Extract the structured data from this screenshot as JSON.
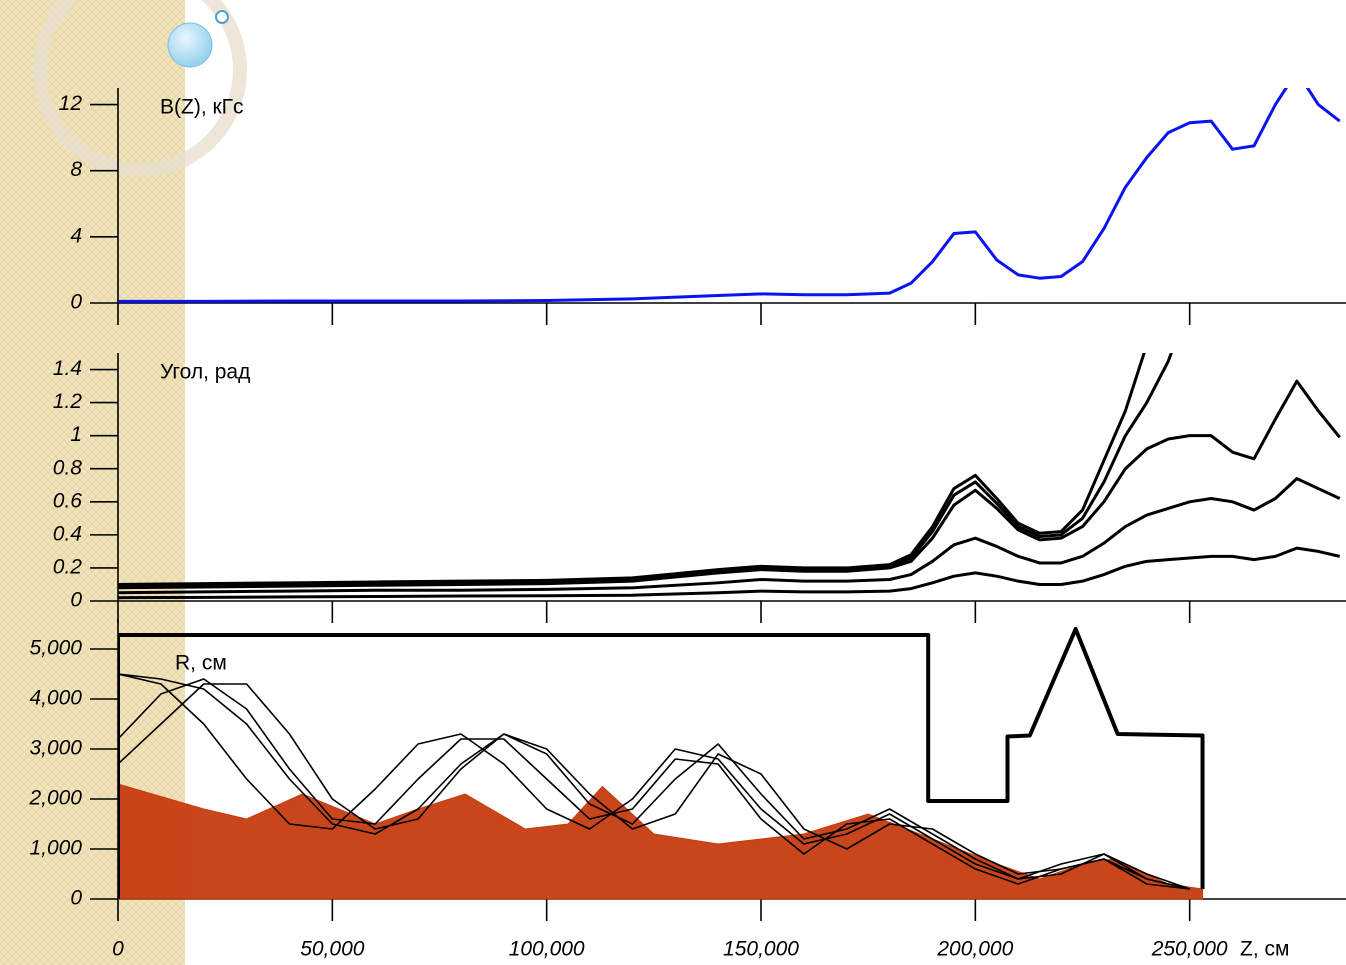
{
  "chart_data": [
    {
      "type": "line",
      "ylabel": "B(Z), кГс",
      "x": [
        0,
        20000,
        40000,
        60000,
        80000,
        100000,
        120000,
        140000,
        150000,
        160000,
        170000,
        180000,
        185000,
        190000,
        195000,
        200000,
        205000,
        210000,
        215000,
        220000,
        225000,
        230000,
        235000,
        240000,
        245000,
        250000,
        255000,
        260000,
        265000,
        270000,
        275000,
        280000,
        285000
      ],
      "xlim": [
        0,
        286000
      ],
      "ylim": [
        0,
        13
      ],
      "yticks": [
        0,
        4,
        8,
        12
      ],
      "series": [
        {
          "color": "#0a14f0",
          "values": [
            0.1,
            0.1,
            0.12,
            0.12,
            0.12,
            0.15,
            0.25,
            0.45,
            0.55,
            0.5,
            0.5,
            0.6,
            1.2,
            2.5,
            4.2,
            4.3,
            2.6,
            1.7,
            1.5,
            1.6,
            2.5,
            4.5,
            7.0,
            8.8,
            10.3,
            10.9,
            11.0,
            9.3,
            9.5,
            12.0,
            14.0,
            12.0,
            11.0
          ]
        }
      ]
    },
    {
      "type": "line",
      "ylabel": "Угол, рад",
      "x": [
        0,
        20000,
        40000,
        60000,
        80000,
        100000,
        120000,
        140000,
        150000,
        160000,
        170000,
        180000,
        185000,
        190000,
        195000,
        200000,
        205000,
        210000,
        215000,
        220000,
        225000,
        230000,
        235000,
        240000,
        245000,
        250000,
        255000,
        260000,
        265000,
        270000,
        275000,
        280000,
        285000
      ],
      "xlim": [
        0,
        286000
      ],
      "ylim": [
        0,
        1.5
      ],
      "yticks": [
        0,
        0.2,
        0.4,
        0.6,
        0.8,
        1,
        1.2,
        1.4
      ],
      "series": [
        {
          "color": "#000000",
          "values": [
            0.1,
            0.105,
            0.11,
            0.115,
            0.12,
            0.125,
            0.14,
            0.19,
            0.21,
            0.2,
            0.2,
            0.22,
            0.28,
            0.45,
            0.68,
            0.76,
            0.62,
            0.47,
            0.41,
            0.42,
            0.55,
            0.85,
            1.15,
            1.55,
            null,
            null,
            null,
            null,
            null,
            null,
            null,
            null,
            null
          ]
        },
        {
          "color": "#000000",
          "values": [
            0.09,
            0.095,
            0.1,
            0.105,
            0.11,
            0.115,
            0.13,
            0.18,
            0.2,
            0.19,
            0.19,
            0.21,
            0.26,
            0.42,
            0.64,
            0.72,
            0.59,
            0.45,
            0.39,
            0.4,
            0.5,
            0.72,
            1.0,
            1.2,
            1.45,
            1.8,
            null,
            null,
            null,
            null,
            null,
            null,
            null
          ]
        },
        {
          "color": "#000000",
          "values": [
            0.08,
            0.085,
            0.09,
            0.095,
            0.1,
            0.105,
            0.12,
            0.17,
            0.19,
            0.18,
            0.18,
            0.2,
            0.24,
            0.38,
            0.58,
            0.67,
            0.56,
            0.43,
            0.37,
            0.38,
            0.45,
            0.6,
            0.8,
            0.92,
            0.98,
            1.0,
            1.0,
            0.9,
            0.86,
            1.1,
            1.33,
            1.15,
            0.99
          ]
        },
        {
          "color": "#000000",
          "values": [
            0.05,
            0.055,
            0.06,
            0.065,
            0.065,
            0.07,
            0.08,
            0.11,
            0.13,
            0.12,
            0.12,
            0.13,
            0.16,
            0.24,
            0.34,
            0.38,
            0.33,
            0.27,
            0.23,
            0.23,
            0.27,
            0.35,
            0.45,
            0.52,
            0.56,
            0.6,
            0.62,
            0.6,
            0.55,
            0.62,
            0.74,
            0.68,
            0.62
          ]
        },
        {
          "color": "#000000",
          "values": [
            0.02,
            0.022,
            0.025,
            0.027,
            0.03,
            0.032,
            0.035,
            0.05,
            0.06,
            0.055,
            0.055,
            0.06,
            0.075,
            0.11,
            0.15,
            0.17,
            0.15,
            0.12,
            0.1,
            0.1,
            0.12,
            0.16,
            0.21,
            0.24,
            0.25,
            0.26,
            0.27,
            0.27,
            0.25,
            0.27,
            0.32,
            0.3,
            0.27
          ]
        }
      ]
    },
    {
      "type": "line",
      "ylabel": "R, см",
      "xlabel": "Z, см",
      "xlim": [
        0,
        286000
      ],
      "ylim": [
        0,
        5600
      ],
      "xticks": [
        0,
        {
          "value": 50000,
          "label": "50,000"
        },
        {
          "value": 100000,
          "label": "100,000"
        },
        {
          "value": 150000,
          "label": "150,000"
        },
        {
          "value": 200000,
          "label": "200,000"
        },
        {
          "value": 250000,
          "label": "250,000"
        }
      ],
      "yticks": [
        0,
        {
          "value": 1000,
          "label": "1,000"
        },
        {
          "value": 2000,
          "label": "2,000"
        },
        {
          "value": 3000,
          "label": "3,000"
        },
        {
          "value": 4000,
          "label": "4,000"
        },
        {
          "value": 5000,
          "label": "5,000"
        }
      ],
      "series": [
        {
          "color": "#c63c10",
          "fill": true,
          "x": [
            0,
            20000,
            30000,
            43000,
            60000,
            70000,
            81000,
            95000,
            105000,
            113000,
            125000,
            140000,
            160000,
            175000,
            190000,
            205000,
            215000,
            225000,
            232000,
            245000,
            253000
          ],
          "values": [
            2300,
            1800,
            1600,
            2100,
            1500,
            1800,
            2100,
            1400,
            1500,
            2250,
            1300,
            1100,
            1300,
            1700,
            1200,
            700,
            400,
            700,
            800,
            300,
            200
          ]
        },
        {
          "color": "#000000",
          "x": [
            0,
            10000,
            20000,
            30000,
            40000,
            50000,
            60000,
            70000,
            80000,
            90000,
            100000,
            110000,
            120000,
            130000,
            140000,
            150000,
            160000,
            170000,
            180000,
            190000,
            200000,
            210000,
            220000,
            230000,
            240000,
            250000
          ],
          "values": [
            4500,
            4300,
            3500,
            2400,
            1500,
            1400,
            2200,
            3100,
            3300,
            2700,
            1800,
            1400,
            2000,
            3000,
            2800,
            1800,
            1100,
            1300,
            1700,
            1200,
            700,
            400,
            500,
            900,
            400,
            200
          ]
        },
        {
          "color": "#000000",
          "x": [
            0,
            10000,
            20000,
            30000,
            40000,
            50000,
            60000,
            70000,
            80000,
            90000,
            100000,
            110000,
            120000,
            130000,
            140000,
            150000,
            160000,
            170000,
            180000,
            190000,
            200000,
            210000,
            220000,
            230000,
            240000,
            250000
          ],
          "values": [
            3200,
            4100,
            4400,
            3800,
            2600,
            1600,
            1500,
            2400,
            3200,
            3200,
            2400,
            1600,
            1800,
            2800,
            2700,
            1600,
            900,
            1500,
            1600,
            1100,
            600,
            300,
            600,
            800,
            300,
            200
          ]
        },
        {
          "color": "#000000",
          "x": [
            0,
            10000,
            20000,
            30000,
            40000,
            50000,
            60000,
            70000,
            80000,
            90000,
            100000,
            110000,
            120000,
            130000,
            140000,
            150000,
            160000,
            170000,
            180000,
            190000,
            200000,
            210000,
            220000,
            230000,
            240000,
            250000
          ],
          "values": [
            2700,
            3500,
            4300,
            4300,
            3300,
            2000,
            1400,
            1600,
            2600,
            3300,
            2900,
            1900,
            1500,
            2400,
            3100,
            2100,
            1200,
            1400,
            1800,
            1300,
            800,
            400,
            700,
            900,
            500,
            200
          ]
        },
        {
          "color": "#000000",
          "x": [
            0,
            10000,
            20000,
            30000,
            40000,
            50000,
            60000,
            70000,
            80000,
            90000,
            100000,
            110000,
            120000,
            130000,
            140000,
            150000,
            160000,
            170000,
            180000,
            190000,
            200000,
            210000,
            220000,
            230000,
            240000,
            250000
          ],
          "values": [
            4500,
            4400,
            4200,
            3500,
            2400,
            1500,
            1300,
            1800,
            2700,
            3300,
            3000,
            2100,
            1400,
            1700,
            2900,
            2500,
            1400,
            1000,
            1500,
            1400,
            900,
            500,
            600,
            800,
            400,
            200
          ]
        },
        {
          "color": "#000000",
          "width": 4,
          "x": [
            0,
            0,
            189000,
            189000,
            207500,
            207500,
            212700,
            223400,
            233200,
            253000,
            253000
          ],
          "values": [
            0,
            5280,
            5280,
            1960,
            1960,
            3250,
            3270,
            5400,
            3300,
            3270,
            200
          ]
        }
      ]
    }
  ]
}
